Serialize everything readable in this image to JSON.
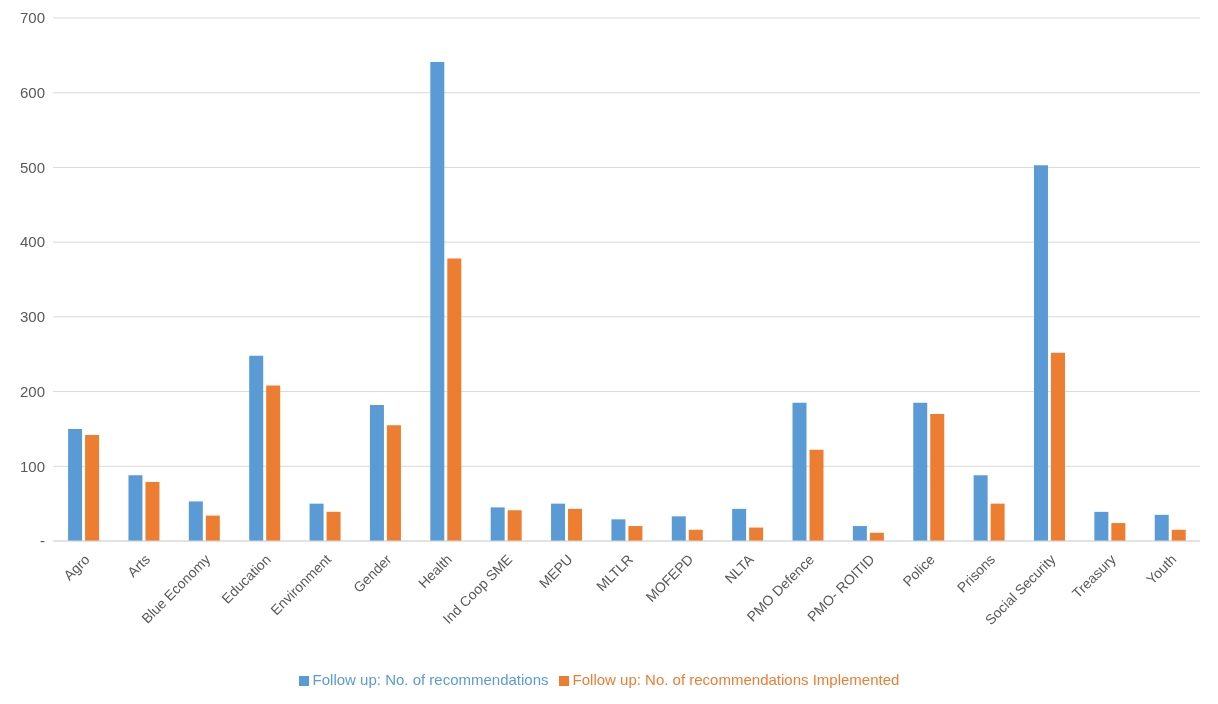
{
  "chart_data": {
    "type": "bar",
    "categories": [
      "Agro",
      "Arts",
      "Blue Economy",
      "Education",
      "Environment",
      "Gender",
      "Health",
      "Ind Coop SME",
      "MEPU",
      "MLTLR",
      "MOFEPD",
      "NLTA",
      "PMO Defence",
      "PMO- ROITID",
      "Police",
      "Prisons",
      "Social Security",
      "Treasury",
      "Youth"
    ],
    "series": [
      {
        "name": "Follow up: No. of recommendations",
        "color": "#5b9bd5",
        "values": [
          150,
          88,
          53,
          248,
          50,
          182,
          641,
          45,
          50,
          29,
          33,
          43,
          185,
          20,
          185,
          88,
          503,
          39,
          35
        ]
      },
      {
        "name": "Follow up: No. of recommendations Implemented",
        "color": "#ed7d31",
        "values": [
          142,
          79,
          34,
          208,
          39,
          155,
          378,
          41,
          43,
          20,
          15,
          18,
          122,
          11,
          170,
          50,
          252,
          24,
          15
        ]
      }
    ],
    "ylim": [
      0,
      700
    ],
    "yticks": [
      {
        "value": 0,
        "label": "-"
      },
      100,
      200,
      300,
      400,
      500,
      600,
      700
    ],
    "grid": "y",
    "legend": "bottom"
  }
}
